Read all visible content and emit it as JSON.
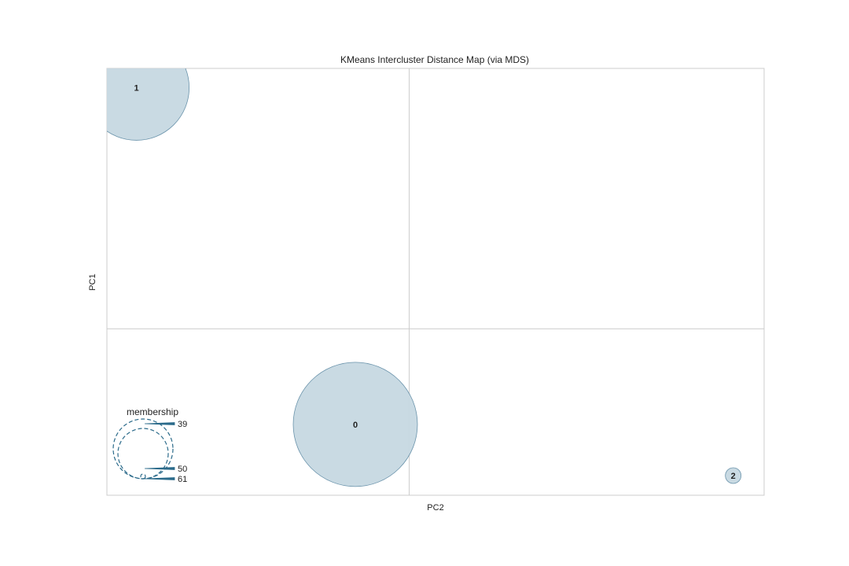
{
  "chart_data": {
    "type": "scatter",
    "title": "KMeans Intercluster Distance Map (via MDS)",
    "xlabel": "PC2",
    "ylabel": "PC1",
    "xlim": [
      0,
      1
    ],
    "ylim": [
      0,
      1
    ],
    "grid": true,
    "center_lines": {
      "x": 0.46,
      "y": 0.39
    },
    "clusters": [
      {
        "label": "0",
        "x": 0.378,
        "y": 0.166,
        "size": 50
      },
      {
        "label": "1",
        "x": 0.045,
        "y": 0.955,
        "size": 61
      },
      {
        "label": "2",
        "x": 0.953,
        "y": 0.046,
        "size": 39
      }
    ],
    "legend": {
      "title": "membership",
      "position": "bottom-left",
      "sizes": [
        39,
        50,
        61
      ]
    },
    "colors": {
      "fill": "#c6d8e2",
      "edge": "#6a93ab",
      "legend_stroke": "#2a6a8a",
      "frame": "#cccccc",
      "grid": "#cccccc"
    }
  }
}
